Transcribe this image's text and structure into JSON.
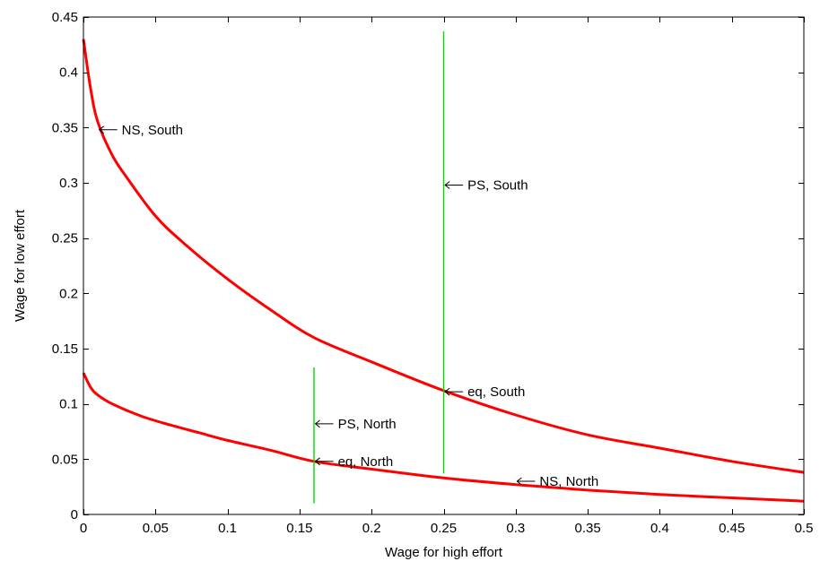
{
  "chart_data": {
    "type": "line",
    "title": "",
    "xlabel": "Wage for high effort",
    "ylabel": "Wage for low effort",
    "xlim": [
      0,
      0.5
    ],
    "ylim": [
      0,
      0.45
    ],
    "xticks": [
      0,
      0.05,
      0.1,
      0.15,
      0.2,
      0.25,
      0.3,
      0.35,
      0.4,
      0.45,
      0.5
    ],
    "yticks": [
      0,
      0.05,
      0.1,
      0.15,
      0.2,
      0.25,
      0.3,
      0.35,
      0.4,
      0.45
    ],
    "xtick_labels": [
      "0",
      "0.05",
      "0.1",
      "0.15",
      "0.2",
      "0.25",
      "0.3",
      "0.35",
      "0.4",
      "0.45",
      "0.5"
    ],
    "ytick_labels": [
      "0",
      "0.05",
      "0.1",
      "0.15",
      "0.2",
      "0.25",
      "0.3",
      "0.35",
      "0.4",
      "0.45"
    ],
    "grid": false,
    "series": [
      {
        "color": "#ff0000",
        "x": [
          0,
          0.005,
          0.01,
          0.02,
          0.03,
          0.05,
          0.07,
          0.1,
          0.13,
          0.16,
          0.2,
          0.25,
          0.3,
          0.35,
          0.4,
          0.45,
          0.5
        ],
        "y": [
          0.43,
          0.385,
          0.355,
          0.325,
          0.305,
          0.27,
          0.245,
          0.213,
          0.185,
          0.16,
          0.138,
          0.112,
          0.09,
          0.072,
          0.06,
          0.048,
          0.038
        ]
      },
      {
        "color": "#ff0000",
        "x": [
          0,
          0.005,
          0.01,
          0.02,
          0.04,
          0.06,
          0.08,
          0.1,
          0.13,
          0.16,
          0.2,
          0.25,
          0.3,
          0.35,
          0.4,
          0.45,
          0.5
        ],
        "y": [
          0.128,
          0.115,
          0.108,
          0.1,
          0.089,
          0.081,
          0.074,
          0.067,
          0.058,
          0.048,
          0.041,
          0.033,
          0.027,
          0.022,
          0.018,
          0.015,
          0.012
        ]
      },
      {
        "color": "#00dd00",
        "x": [
          0.25,
          0.25
        ],
        "y": [
          0.037,
          0.437
        ]
      },
      {
        "color": "#00dd00",
        "x": [
          0.16,
          0.16
        ],
        "y": [
          0.01,
          0.133
        ]
      }
    ],
    "annotations": [
      {
        "text": "NS, South",
        "x": 0.011,
        "y": 0.348
      },
      {
        "text": "PS, South",
        "x": 0.251,
        "y": 0.298
      },
      {
        "text": "eq, South",
        "x": 0.251,
        "y": 0.111
      },
      {
        "text": "PS, North",
        "x": 0.161,
        "y": 0.082
      },
      {
        "text": "eq, North",
        "x": 0.161,
        "y": 0.048
      },
      {
        "text": "NS, North",
        "x": 0.301,
        "y": 0.03
      }
    ]
  }
}
